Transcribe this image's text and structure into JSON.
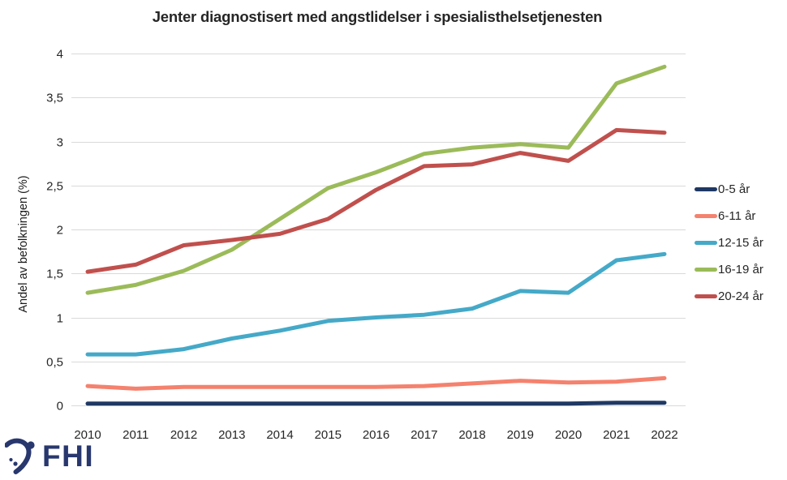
{
  "title": "Jenter diagnostisert med angstlidelser i spesialisthelsetjenesten",
  "logo": {
    "text": "FHI",
    "color": "#28376D"
  },
  "colors": {
    "grid": "#D9D9D9",
    "text": "#262626",
    "background": "#FFFFFF"
  },
  "chart_data": {
    "type": "line",
    "title": "Jenter diagnostisert med angstlidelser i spesialisthelsetjenesten",
    "xlabel": "",
    "ylabel": "Andel av befolkningen (%)",
    "categories": [
      "2010",
      "2011",
      "2012",
      "2013",
      "2014",
      "2015",
      "2016",
      "2017",
      "2018",
      "2019",
      "2020",
      "2021",
      "2022"
    ],
    "series": [
      {
        "name": "0-5 år",
        "color": "#1F3864",
        "values": [
          0.02,
          0.02,
          0.02,
          0.02,
          0.02,
          0.02,
          0.02,
          0.02,
          0.02,
          0.02,
          0.02,
          0.03,
          0.03
        ]
      },
      {
        "name": "6-11 år",
        "color": "#F4826E",
        "values": [
          0.22,
          0.19,
          0.21,
          0.21,
          0.21,
          0.21,
          0.21,
          0.22,
          0.25,
          0.28,
          0.26,
          0.27,
          0.31
        ]
      },
      {
        "name": "12-15 år",
        "color": "#45A9C8",
        "values": [
          0.58,
          0.58,
          0.64,
          0.76,
          0.85,
          0.96,
          1.0,
          1.03,
          1.1,
          1.3,
          1.28,
          1.65,
          1.72
        ]
      },
      {
        "name": "16-19 år",
        "color": "#9BBB59",
        "values": [
          1.28,
          1.37,
          1.53,
          1.77,
          2.12,
          2.47,
          2.65,
          2.86,
          2.93,
          2.97,
          2.93,
          3.66,
          3.85
        ]
      },
      {
        "name": "20-24 år",
        "color": "#C0504D",
        "values": [
          1.52,
          1.6,
          1.82,
          1.88,
          1.95,
          2.12,
          2.45,
          2.72,
          2.74,
          2.87,
          2.78,
          3.13,
          3.1
        ]
      }
    ],
    "ylim": [
      0,
      4
    ],
    "yticks": {
      "values": [
        0,
        0.5,
        1,
        1.5,
        2,
        2.5,
        3,
        3.5,
        4
      ],
      "labels": [
        "0",
        "0,5",
        "1",
        "1,5",
        "2",
        "2,5",
        "3",
        "3,5",
        "4"
      ]
    },
    "grid": "horizontal",
    "legend_position": "right"
  }
}
